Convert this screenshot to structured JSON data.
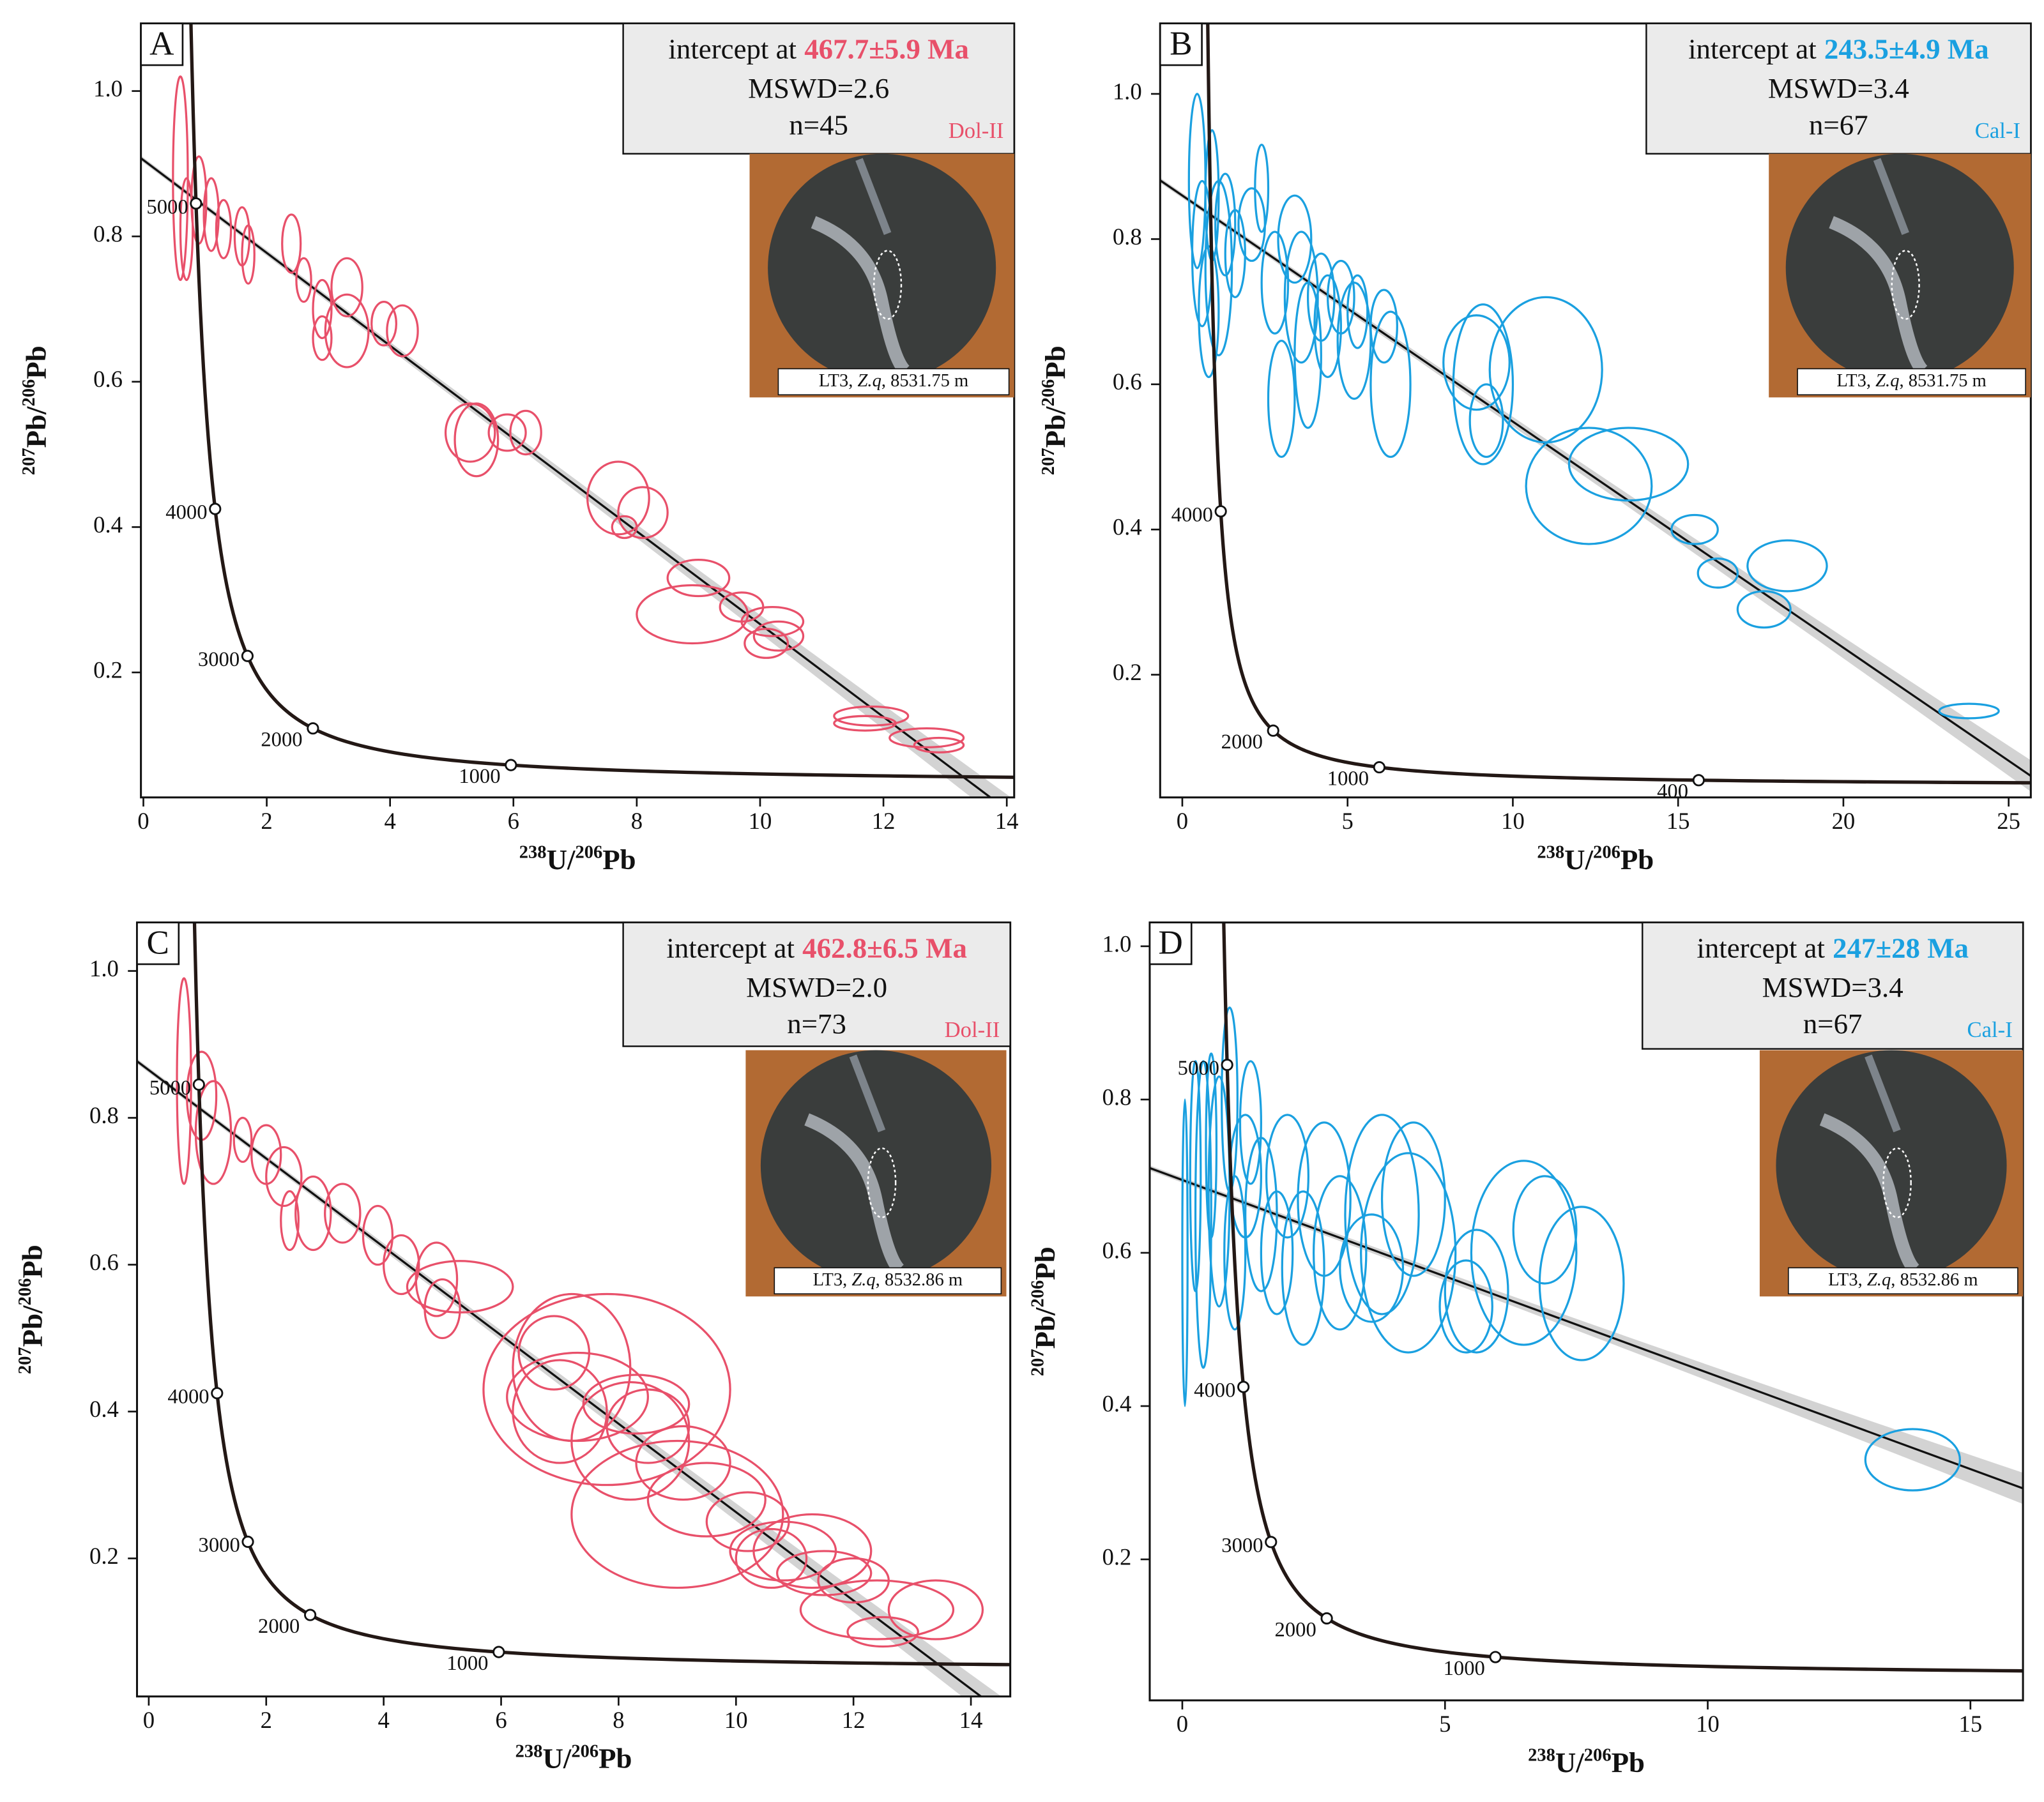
{
  "chart_data": [
    {
      "type": "concordia",
      "panel": "A",
      "color": "#e8506a",
      "intercept_text": "intercept at",
      "intercept_age": {
        "value": 467.7,
        "label": "467.7±5.9 Ma"
      },
      "mswd": "MSWD=2.6",
      "n": "n=45",
      "phase": "Dol-II",
      "photo_caption": [
        "LT3, ",
        "Z.q",
        ", 8531.75 m"
      ],
      "x_label": [
        "238",
        "U/",
        "206",
        "Pb"
      ],
      "y_label": [
        "207",
        "Pb/",
        "206",
        "Pb"
      ],
      "xlim": [
        -0.04,
        14.12
      ],
      "ylim": [
        0.028,
        1.093
      ],
      "xticks": [
        0,
        2,
        4,
        6,
        8,
        10,
        12,
        14
      ],
      "yticks": [
        0.2,
        0.4,
        0.6,
        0.8,
        {
          "value": 1,
          "label": "1.0"
        }
      ],
      "concordia_ages": [
        5000,
        4000,
        3000,
        2000,
        1000
      ],
      "regression_y0": 0.905,
      "x": [
        0.6,
        0.7,
        0.9,
        1.1,
        1.3,
        1.6,
        2.4,
        2.6,
        2.9,
        3.3,
        3.3,
        2.9,
        3.9,
        4.2,
        5.3,
        5.4,
        6.2,
        5.9,
        7.7,
        8.1,
        9.0,
        8.9,
        9.7,
        10.2,
        10.3,
        10.1,
        11.8,
        11.7,
        12.7,
        12.9,
        1.7,
        7.8
      ],
      "x_err": [
        0.12,
        0.1,
        0.12,
        0.12,
        0.12,
        0.12,
        0.15,
        0.12,
        0.15,
        0.25,
        0.35,
        0.15,
        0.2,
        0.25,
        0.4,
        0.35,
        0.25,
        0.3,
        0.5,
        0.4,
        0.5,
        0.9,
        0.35,
        0.5,
        0.4,
        0.35,
        0.6,
        0.5,
        0.6,
        0.4,
        0.1,
        0.2
      ],
      "values": [
        0.88,
        0.81,
        0.85,
        0.83,
        0.81,
        0.8,
        0.79,
        0.74,
        0.7,
        0.73,
        0.67,
        0.66,
        0.68,
        0.67,
        0.53,
        0.52,
        0.53,
        0.53,
        0.44,
        0.42,
        0.33,
        0.28,
        0.29,
        0.27,
        0.25,
        0.24,
        0.14,
        0.13,
        0.11,
        0.1,
        0.775,
        0.4
      ],
      "y_err": [
        0.14,
        0.07,
        0.06,
        0.05,
        0.04,
        0.04,
        0.04,
        0.03,
        0.04,
        0.04,
        0.05,
        0.03,
        0.03,
        0.035,
        0.04,
        0.05,
        0.03,
        0.025,
        0.05,
        0.035,
        0.025,
        0.04,
        0.02,
        0.02,
        0.02,
        0.02,
        0.013,
        0.01,
        0.013,
        0.01,
        0.04,
        0.015
      ]
    },
    {
      "type": "concordia",
      "panel": "B",
      "color": "#1aa0e0",
      "intercept_text": "intercept at",
      "intercept_age": {
        "value": 243.5,
        "label": "243.5±4.9 Ma"
      },
      "mswd": "MSWD=3.4",
      "n": "n=67",
      "phase": "Cal-I",
      "photo_caption": [
        "LT3, ",
        "Z.q",
        ", 8531.75 m"
      ],
      "x_label": [
        "238",
        "U/",
        "206",
        "Pb"
      ],
      "y_label": [
        "207",
        "Pb/",
        "206",
        "Pb"
      ],
      "xlim": [
        -0.67,
        25.67
      ],
      "ylim": [
        0.031,
        1.097
      ],
      "xticks": [
        0,
        5,
        10,
        15,
        20,
        25
      ],
      "yticks": [
        0.2,
        0.4,
        0.6,
        0.8,
        {
          "value": 1,
          "label": "1.0"
        }
      ],
      "concordia_ages": [
        4000,
        2000,
        1000,
        400
      ],
      "regression_y0": 0.86,
      "x": [
        0.45,
        0.6,
        0.9,
        1.1,
        0.8,
        1.3,
        1.6,
        2.1,
        2.4,
        2.8,
        3.4,
        3.6,
        3.8,
        4.2,
        4.4,
        4.8,
        5.2,
        5.3,
        6.3,
        6.1,
        8.9,
        9.1,
        9.2,
        11.0,
        12.3,
        13.5,
        15.5,
        16.2,
        17.6,
        18.3,
        23.8,
        3.0
      ],
      "x_err": [
        0.25,
        0.3,
        0.2,
        0.4,
        0.3,
        0.3,
        0.3,
        0.4,
        0.2,
        0.4,
        0.5,
        0.5,
        0.4,
        0.4,
        0.4,
        0.4,
        0.5,
        0.3,
        0.6,
        0.4,
        1.0,
        0.9,
        0.5,
        1.7,
        1.9,
        1.8,
        0.7,
        0.6,
        0.8,
        1.2,
        0.9,
        0.4
      ],
      "values": [
        0.88,
        0.78,
        0.86,
        0.76,
        0.7,
        0.82,
        0.78,
        0.82,
        0.87,
        0.74,
        0.8,
        0.72,
        0.64,
        0.72,
        0.68,
        0.72,
        0.66,
        0.7,
        0.6,
        0.68,
        0.63,
        0.6,
        0.55,
        0.62,
        0.46,
        0.49,
        0.4,
        0.34,
        0.29,
        0.35,
        0.15,
        0.58
      ],
      "y_err": [
        0.12,
        0.1,
        0.09,
        0.12,
        0.09,
        0.07,
        0.06,
        0.05,
        0.06,
        0.07,
        0.06,
        0.09,
        0.1,
        0.06,
        0.07,
        0.05,
        0.08,
        0.05,
        0.1,
        0.05,
        0.065,
        0.11,
        0.05,
        0.1,
        0.08,
        0.05,
        0.02,
        0.02,
        0.025,
        0.035,
        0.01,
        0.08
      ]
    },
    {
      "type": "concordia",
      "panel": "C",
      "color": "#e8506a",
      "intercept_text": "intercept at",
      "intercept_age": {
        "value": 462.8,
        "label": "462.8±6.5 Ma"
      },
      "mswd": "MSWD=2.0",
      "n": "n=73",
      "phase": "Dol-II",
      "photo_caption": [
        "LT3, ",
        "Z.q",
        ", 8532.86 m"
      ],
      "x_label": [
        "238",
        "U/",
        "206",
        "Pb"
      ],
      "y_label": [
        "207",
        "Pb/",
        "206",
        "Pb"
      ],
      "xlim": [
        -0.2,
        14.67
      ],
      "ylim": [
        0.012,
        1.066
      ],
      "xticks": [
        0,
        2,
        4,
        6,
        8,
        10,
        12,
        14
      ],
      "yticks": [
        0.2,
        0.4,
        0.6,
        0.8,
        {
          "value": 1,
          "label": "1.0"
        }
      ],
      "concordia_ages": [
        5000,
        4000,
        3000,
        2000,
        1000
      ],
      "regression_y0": 0.865,
      "x": [
        0.6,
        0.9,
        1.1,
        1.6,
        2.0,
        2.3,
        2.4,
        2.8,
        3.3,
        3.9,
        4.3,
        4.9,
        5.3,
        5.0,
        7.8,
        7.2,
        7.0,
        7.3,
        8.2,
        8.5,
        9.1,
        9.5,
        9.0,
        10.2,
        10.8,
        11.3,
        11.5,
        12.0,
        12.4,
        12.5,
        13.4,
        6.9,
        8.3,
        10.6
      ],
      "x_err": [
        0.12,
        0.25,
        0.3,
        0.15,
        0.25,
        0.3,
        0.15,
        0.3,
        0.3,
        0.25,
        0.3,
        0.35,
        0.9,
        0.3,
        2.1,
        1.0,
        0.8,
        1.2,
        1.0,
        0.7,
        0.8,
        1.0,
        1.8,
        0.7,
        0.9,
        1.0,
        0.8,
        0.6,
        1.3,
        0.6,
        0.8,
        0.6,
        0.9,
        0.6
      ],
      "values": [
        0.85,
        0.83,
        0.78,
        0.77,
        0.75,
        0.72,
        0.66,
        0.67,
        0.67,
        0.64,
        0.6,
        0.58,
        0.57,
        0.54,
        0.43,
        0.46,
        0.4,
        0.42,
        0.36,
        0.38,
        0.33,
        0.28,
        0.26,
        0.25,
        0.21,
        0.21,
        0.18,
        0.17,
        0.13,
        0.1,
        0.13,
        0.48,
        0.41,
        0.2
      ],
      "y_err": [
        0.14,
        0.06,
        0.07,
        0.03,
        0.04,
        0.04,
        0.04,
        0.05,
        0.04,
        0.04,
        0.04,
        0.05,
        0.035,
        0.04,
        0.13,
        0.1,
        0.07,
        0.06,
        0.08,
        0.05,
        0.05,
        0.05,
        0.1,
        0.04,
        0.04,
        0.05,
        0.03,
        0.03,
        0.04,
        0.02,
        0.04,
        0.05,
        0.04,
        0.04
      ]
    },
    {
      "type": "concordia",
      "panel": "D",
      "color": "#1aa0e0",
      "intercept_text": "intercept at",
      "intercept_age": {
        "value": 247,
        "label": "247±28 Ma"
      },
      "mswd": "MSWD=3.4",
      "n": "n=67",
      "phase": "Cal-I",
      "photo_caption": [
        "LT3, ",
        "Z.q",
        ", 8532.86 m"
      ],
      "x_label": [
        "238",
        "U/",
        "206",
        "Pb"
      ],
      "y_label": [
        "207",
        "Pb/",
        "206",
        "Pb"
      ],
      "xlim": [
        -0.62,
        16.0
      ],
      "ylim": [
        0.016,
        1.031
      ],
      "xticks": [
        0,
        5,
        10,
        15
      ],
      "yticks": [
        0.2,
        0.4,
        0.6,
        0.8,
        {
          "value": 1,
          "label": "1.0"
        }
      ],
      "concordia_ages": [
        5000,
        4000,
        3000,
        2000,
        1000
      ],
      "regression_y0": 0.695,
      "x": [
        0.05,
        0.25,
        0.4,
        0.55,
        0.7,
        0.9,
        1.0,
        1.2,
        1.5,
        1.8,
        2.0,
        2.3,
        2.7,
        3.0,
        3.6,
        3.8,
        4.3,
        4.4,
        5.4,
        5.6,
        6.5,
        7.6,
        13.9,
        1.3,
        6.9
      ],
      "x_err": [
        0.05,
        0.1,
        0.15,
        0.1,
        0.2,
        0.15,
        0.2,
        0.3,
        0.3,
        0.3,
        0.4,
        0.4,
        0.5,
        0.5,
        0.6,
        0.7,
        0.9,
        0.6,
        0.5,
        0.6,
        1.0,
        0.8,
        0.9,
        0.2,
        0.6
      ],
      "values": [
        0.6,
        0.7,
        0.65,
        0.74,
        0.68,
        0.8,
        0.6,
        0.7,
        0.65,
        0.6,
        0.7,
        0.58,
        0.67,
        0.6,
        0.58,
        0.65,
        0.6,
        0.67,
        0.53,
        0.55,
        0.6,
        0.56,
        0.33,
        0.77,
        0.63
      ],
      "y_err": [
        0.2,
        0.15,
        0.2,
        0.12,
        0.15,
        0.12,
        0.1,
        0.08,
        0.1,
        0.08,
        0.08,
        0.1,
        0.1,
        0.1,
        0.07,
        0.13,
        0.13,
        0.1,
        0.06,
        0.08,
        0.12,
        0.1,
        0.04,
        0.08,
        0.07
      ]
    }
  ]
}
